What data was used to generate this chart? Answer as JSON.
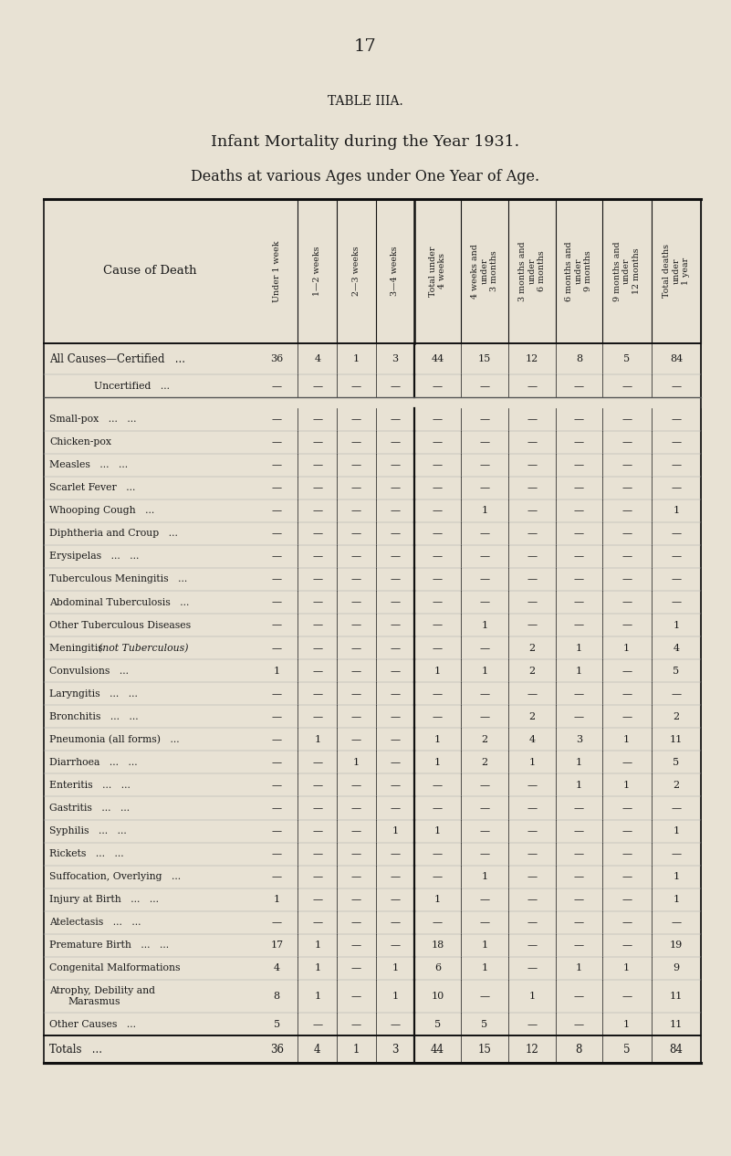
{
  "page_number": "17",
  "table_title": "TABLE IIIA.",
  "subtitle1": "Infant Mortality during the Year 1931.",
  "subtitle2": "Deaths at various Ages under One Year of Age.",
  "bg_color": "#e8e2d4",
  "col_headers": [
    "Under 1 week",
    "1—2 weeks",
    "2—3 weeks",
    "3—4 weeks",
    "Total under\n4 weeks",
    "4 weeks and\nunder\n3 months",
    "3 months and\nunder\n6 months",
    "6 months and\nunder\n9 months",
    "9 months and\nunder\n12 months",
    "Total deaths\nunder\n1 year"
  ],
  "rows": [
    {
      "label": "All Causes—Certified   ...",
      "indent": false,
      "values": [
        "36",
        "4",
        "1",
        "3",
        "44",
        "15",
        "12",
        "8",
        "5",
        "84"
      ],
      "style": "certified"
    },
    {
      "label": "Uncertified   ...",
      "indent": true,
      "values": [
        "—",
        "—",
        "—",
        "—",
        "—",
        "—",
        "—",
        "—",
        "—",
        "—"
      ],
      "style": "uncertified"
    },
    {
      "label": "Small-pox   ...   ...",
      "indent": false,
      "values": [
        "—",
        "—",
        "—",
        "—",
        "—",
        "—",
        "—",
        "—",
        "—",
        "—"
      ],
      "style": "normal"
    },
    {
      "label": "Chicken-pox",
      "indent": false,
      "values": [
        "—",
        "—",
        "—",
        "—",
        "—",
        "—",
        "—",
        "—",
        "—",
        "—"
      ],
      "style": "normal"
    },
    {
      "label": "Measles   ...   ...",
      "indent": false,
      "values": [
        "—",
        "—",
        "—",
        "—",
        "—",
        "—",
        "—",
        "—",
        "—",
        "—"
      ],
      "style": "normal"
    },
    {
      "label": "Scarlet Fever   ...",
      "indent": false,
      "values": [
        "—",
        "—",
        "—",
        "—",
        "—",
        "—",
        "—",
        "—",
        "—",
        "—"
      ],
      "style": "normal"
    },
    {
      "label": "Whooping Cough   ...",
      "indent": false,
      "values": [
        "—",
        "—",
        "—",
        "—",
        "—",
        "1",
        "—",
        "—",
        "—",
        "1"
      ],
      "style": "normal"
    },
    {
      "label": "Diphtheria and Croup   ...",
      "indent": false,
      "values": [
        "—",
        "—",
        "—",
        "—",
        "—",
        "—",
        "—",
        "—",
        "—",
        "—"
      ],
      "style": "normal"
    },
    {
      "label": "Erysipelas   ...   ...",
      "indent": false,
      "values": [
        "—",
        "—",
        "—",
        "—",
        "—",
        "—",
        "—",
        "—",
        "—",
        "—"
      ],
      "style": "normal"
    },
    {
      "label": "Tuberculous Meningitis   ...",
      "indent": false,
      "values": [
        "—",
        "—",
        "—",
        "—",
        "—",
        "—",
        "—",
        "—",
        "—",
        "—"
      ],
      "style": "normal"
    },
    {
      "label": "Abdominal Tuberculosis   ...",
      "indent": false,
      "values": [
        "—",
        "—",
        "—",
        "—",
        "—",
        "—",
        "—",
        "—",
        "—",
        "—"
      ],
      "style": "normal"
    },
    {
      "label": "Other Tuberculous Diseases",
      "indent": false,
      "values": [
        "—",
        "—",
        "—",
        "—",
        "—",
        "1",
        "—",
        "—",
        "—",
        "1"
      ],
      "style": "normal"
    },
    {
      "label": "Meningitis (not Tuberculous)",
      "indent": false,
      "values": [
        "—",
        "—",
        "—",
        "—",
        "—",
        "—",
        "2",
        "1",
        "1",
        "4"
      ],
      "style": "italic"
    },
    {
      "label": "Convulsions   ...",
      "indent": false,
      "values": [
        "1",
        "—",
        "—",
        "—",
        "1",
        "1",
        "2",
        "1",
        "—",
        "5"
      ],
      "style": "normal"
    },
    {
      "label": "Laryngitis   ...   ...",
      "indent": false,
      "values": [
        "—",
        "—",
        "—",
        "—",
        "—",
        "—",
        "—",
        "—",
        "—",
        "—"
      ],
      "style": "normal"
    },
    {
      "label": "Bronchitis   ...   ...",
      "indent": false,
      "values": [
        "—",
        "—",
        "—",
        "—",
        "—",
        "—",
        "2",
        "—",
        "—",
        "2"
      ],
      "style": "normal"
    },
    {
      "label": "Pneumonia (all forms)   ...",
      "indent": false,
      "values": [
        "—",
        "1",
        "—",
        "—",
        "1",
        "2",
        "4",
        "3",
        "1",
        "11"
      ],
      "style": "normal"
    },
    {
      "label": "Diarrhoea   ...   ...",
      "indent": false,
      "values": [
        "—",
        "—",
        "1",
        "—",
        "1",
        "2",
        "1",
        "1",
        "—",
        "5"
      ],
      "style": "normal"
    },
    {
      "label": "Enteritis   ...   ...",
      "indent": false,
      "values": [
        "—",
        "—",
        "—",
        "—",
        "—",
        "—",
        "—",
        "1",
        "1",
        "2"
      ],
      "style": "normal"
    },
    {
      "label": "Gastritis   ...   ...",
      "indent": false,
      "values": [
        "—",
        "—",
        "—",
        "—",
        "—",
        "—",
        "—",
        "—",
        "—",
        "—"
      ],
      "style": "normal"
    },
    {
      "label": "Syphilis   ...   ...",
      "indent": false,
      "values": [
        "—",
        "—",
        "—",
        "1",
        "1",
        "—",
        "—",
        "—",
        "—",
        "1"
      ],
      "style": "normal"
    },
    {
      "label": "Rickets   ...   ...",
      "indent": false,
      "values": [
        "—",
        "—",
        "—",
        "—",
        "—",
        "—",
        "—",
        "—",
        "—",
        "—"
      ],
      "style": "normal"
    },
    {
      "label": "Suffocation, Overlying   ...",
      "indent": false,
      "values": [
        "—",
        "—",
        "—",
        "—",
        "—",
        "1",
        "—",
        "—",
        "—",
        "1"
      ],
      "style": "normal"
    },
    {
      "label": "Injury at Birth   ...   ...",
      "indent": false,
      "values": [
        "1",
        "—",
        "—",
        "—",
        "1",
        "—",
        "—",
        "—",
        "—",
        "1"
      ],
      "style": "normal"
    },
    {
      "label": "Atelectasis   ...   ...",
      "indent": false,
      "values": [
        "—",
        "—",
        "—",
        "—",
        "—",
        "—",
        "—",
        "—",
        "—",
        "—"
      ],
      "style": "normal"
    },
    {
      "label": "Premature Birth   ...   ...",
      "indent": false,
      "values": [
        "17",
        "1",
        "—",
        "—",
        "18",
        "1",
        "—",
        "—",
        "—",
        "19"
      ],
      "style": "normal"
    },
    {
      "label": "Congenital Malformations",
      "indent": false,
      "values": [
        "4",
        "1",
        "—",
        "1",
        "6",
        "1",
        "—",
        "1",
        "1",
        "9"
      ],
      "style": "normal"
    },
    {
      "label": "Atrophy, Debility and\nMarasmus",
      "indent": false,
      "values": [
        "8",
        "1",
        "—",
        "1",
        "10",
        "—",
        "1",
        "—",
        "—",
        "11"
      ],
      "style": "two_line"
    },
    {
      "label": "Other Causes   ...",
      "indent": false,
      "values": [
        "5",
        "—",
        "—",
        "—",
        "5",
        "5",
        "—",
        "—",
        "1",
        "11"
      ],
      "style": "normal"
    }
  ],
  "totals_row": {
    "label": "Totals   ...",
    "values": [
      "36",
      "4",
      "1",
      "3",
      "44",
      "15",
      "12",
      "8",
      "5",
      "84"
    ]
  }
}
